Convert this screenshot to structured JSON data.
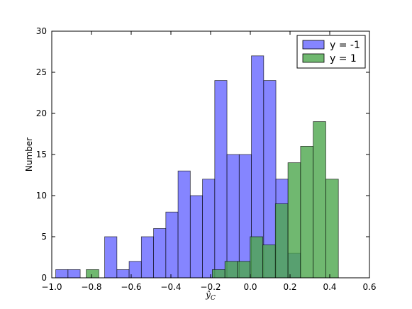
{
  "chart_data": {
    "type": "histogram",
    "xlabel": "ŷ_C",
    "ylabel": "Number",
    "xlim": [
      -1.0,
      0.6
    ],
    "ylim": [
      0,
      30
    ],
    "xticks": [
      -1.0,
      -0.8,
      -0.6,
      -0.4,
      -0.2,
      0.0,
      0.2,
      0.4,
      0.6
    ],
    "xtick_labels": [
      "−1.0",
      "−0.8",
      "−0.6",
      "−0.4",
      "−0.2",
      "0.0",
      "0.2",
      "0.4",
      "0.6"
    ],
    "yticks": [
      0,
      5,
      10,
      15,
      20,
      25,
      30
    ],
    "ytick_labels": [
      "0",
      "5",
      "10",
      "15",
      "20",
      "25",
      "30"
    ],
    "grid": false,
    "legend_position": "top-right",
    "series": [
      {
        "name": "y = -1",
        "color": "#6666ff",
        "bin_width": 0.0616,
        "bin_edges": [
          -0.98,
          -0.9184,
          -0.8568,
          -0.7952,
          -0.7336,
          -0.672,
          -0.6104,
          -0.5488,
          -0.4872,
          -0.4256,
          -0.364,
          -0.3024,
          -0.2408,
          -0.1792,
          -0.1176,
          -0.056,
          0.0056,
          0.0672,
          0.1288,
          0.1904,
          0.252
        ],
        "counts": [
          1,
          1,
          0,
          0,
          5,
          1,
          2,
          5,
          6,
          8,
          13,
          10,
          12,
          24,
          15,
          15,
          27,
          24,
          12,
          3
        ]
      },
      {
        "name": "y = 1",
        "color": "#4ca64c",
        "bin_width": 0.0635,
        "bin_edges": [
          -0.8264,
          -0.7629,
          -0.6994,
          -0.6359,
          -0.5724,
          -0.5089,
          -0.4454,
          -0.3819,
          -0.3184,
          -0.2549,
          -0.1914,
          -0.1279,
          -0.0644,
          -0.0009,
          0.0626,
          0.1261,
          0.1896,
          0.2531,
          0.3166,
          0.3801,
          0.4436
        ],
        "counts": [
          1,
          0,
          0,
          0,
          0,
          0,
          0,
          0,
          0,
          0,
          1,
          2,
          2,
          5,
          4,
          9,
          14,
          16,
          19,
          12
        ]
      }
    ]
  }
}
